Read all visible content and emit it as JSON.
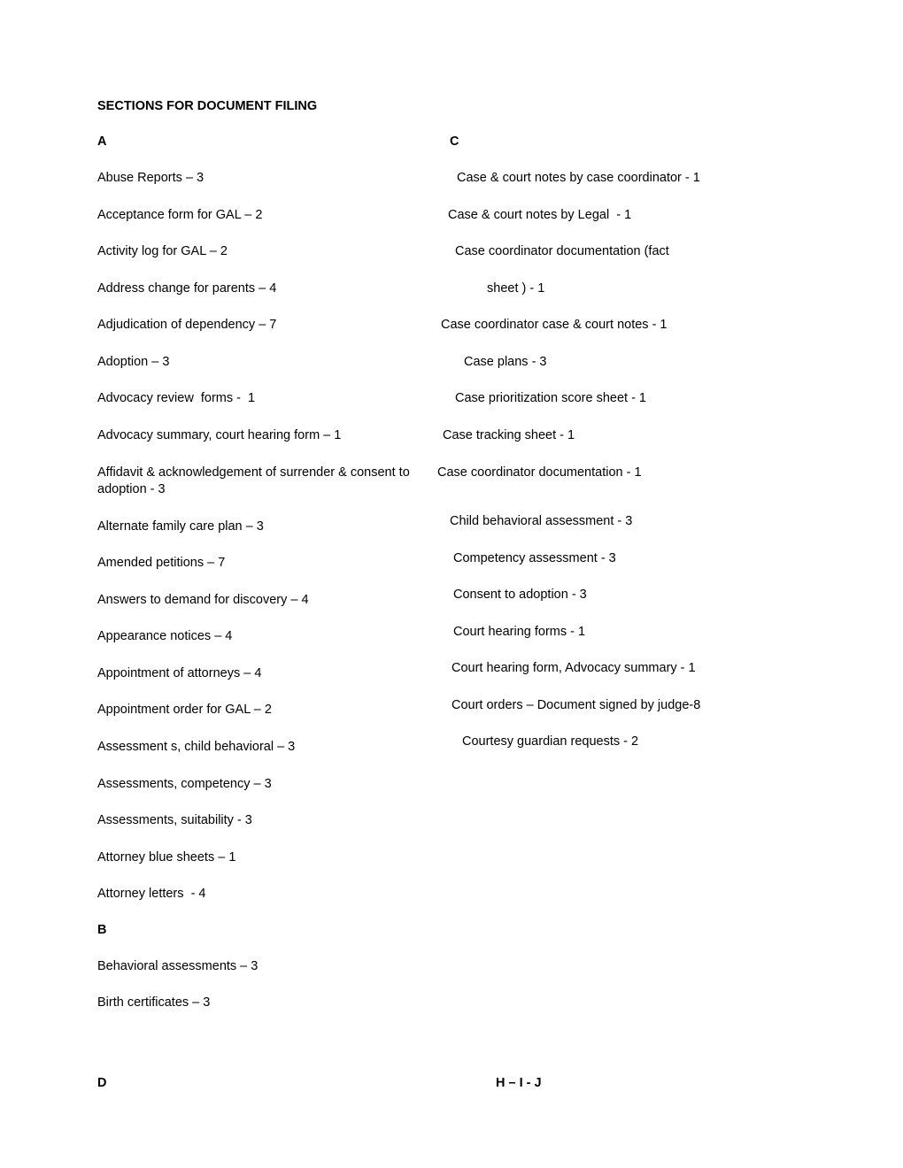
{
  "title": "SECTIONS FOR DOCUMENT FILING",
  "colA": {
    "header": "A",
    "items": [
      "Abuse Reports – 3",
      "Acceptance form for GAL – 2",
      "Activity log for GAL – 2",
      "Address change for parents – 4",
      "Adjudication of dependency – 7",
      "Adoption – 3",
      "Advocacy review  forms -  1",
      "Advocacy summary, court hearing form – 1",
      "Affidavit & acknowledgement of surrender & consent to adoption - 3",
      "Alternate family care plan – 3",
      "Amended petitions – 7",
      "Answers to demand for discovery – 4",
      "Appearance notices – 4",
      "Appointment of attorneys – 4",
      "Appointment order for GAL – 2",
      "Assessment s, child behavioral – 3",
      "Assessments, competency – 3",
      "Assessments, suitability - 3",
      "Attorney blue sheets – 1",
      "Attorney letters  - 4"
    ]
  },
  "colB": {
    "header": "B",
    "items": [
      "Behavioral assessments – 3",
      "Birth certificates – 3"
    ]
  },
  "colC": {
    "header": "C",
    "items": [
      {
        "text": "Case & court notes by case coordinator - 1",
        "indent": 36
      },
      {
        "text": "Case & court notes by Legal  - 1",
        "indent": 26
      },
      {
        "text": "Case coordinator documentation (fact",
        "indent": 34
      },
      {
        "text": "sheet ) - 1",
        "indent": 70
      },
      {
        "text": "Case coordinator case & court notes - 1",
        "indent": 18
      },
      {
        "text": "Case plans - 3",
        "indent": 44
      },
      {
        "text": "Case prioritization score sheet - 1",
        "indent": 34
      },
      {
        "text": "Case tracking sheet - 1",
        "indent": 20
      },
      {
        "text": "Case coordinator documentation - 1",
        "indent": 14
      },
      {
        "text": "",
        "indent": 0
      },
      {
        "text": "Child behavioral assessment - 3",
        "indent": 28
      },
      {
        "text": "Competency assessment - 3",
        "indent": 32
      },
      {
        "text": "Consent to adoption - 3",
        "indent": 32
      },
      {
        "text": "Court hearing forms - 1",
        "indent": 32
      },
      {
        "text": "Court hearing form, Advocacy summary - 1",
        "indent": 30
      },
      {
        "text": "Court orders – Document signed by judge-8",
        "indent": 30
      },
      {
        "text": "Courtesy guardian requests - 2",
        "indent": 42
      }
    ]
  },
  "bottomLeft": {
    "header": "D"
  },
  "bottomRight": {
    "header": "H – I - J"
  }
}
